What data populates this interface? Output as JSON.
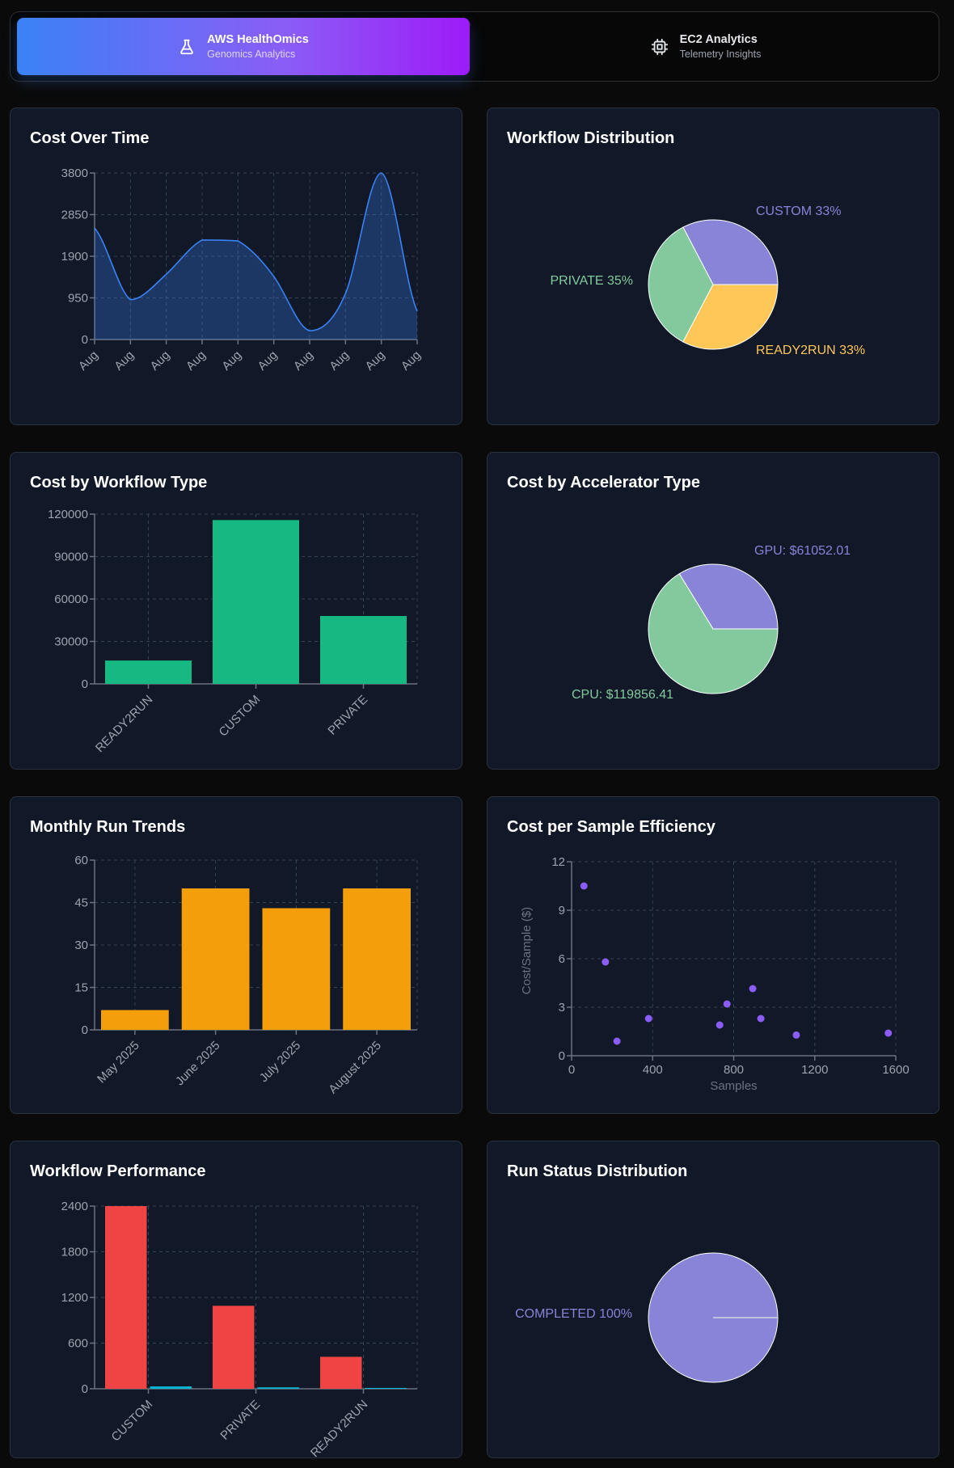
{
  "tabs": [
    {
      "title": "AWS HealthOmics",
      "subtitle": "Genomics Analytics",
      "icon": "flask-icon",
      "active": true
    },
    {
      "title": "EC2 Analytics",
      "subtitle": "Telemetry Insights",
      "icon": "chip-icon",
      "active": false
    }
  ],
  "colors": {
    "page_bg": "#0a0a0a",
    "card_bg": "#111827",
    "area": "#3b82f6",
    "green_bar": "#16b981",
    "orange_bar": "#f59e0b",
    "scatter": "#8b5cf6",
    "red_bar": "#ef4444",
    "cyan_bar": "#06b6d4",
    "pie_purple": "#8884d8",
    "pie_green": "#82ca9d",
    "pie_yellow": "#ffc658"
  },
  "chart_data": [
    {
      "id": "cost-over-time",
      "type": "area",
      "title": "Cost Over Time",
      "categories": [
        "Aug",
        "Aug",
        "Aug",
        "Aug",
        "Aug",
        "Aug",
        "Aug",
        "Aug",
        "Aug",
        "Aug"
      ],
      "values": [
        2540,
        910,
        1490,
        2270,
        2250,
        1440,
        200,
        1050,
        3800,
        650
      ],
      "yticks": [
        0,
        950,
        1900,
        2850,
        3800
      ],
      "ylim": [
        0,
        3800
      ],
      "grid": true
    },
    {
      "id": "workflow-distribution",
      "type": "pie",
      "title": "Workflow Distribution",
      "slices": [
        {
          "label": "CUSTOM",
          "value": 33,
          "display": "CUSTOM 33%",
          "color": "#8884d8"
        },
        {
          "label": "PRIVATE",
          "value": 35,
          "display": "PRIVATE 35%",
          "color": "#82ca9d"
        },
        {
          "label": "READY2RUN",
          "value": 33,
          "display": "READY2RUN 33%",
          "color": "#ffc658"
        }
      ]
    },
    {
      "id": "cost-by-workflow-type",
      "type": "bar",
      "title": "Cost by Workflow Type",
      "categories": [
        "READY2RUN",
        "CUSTOM",
        "PRIVATE"
      ],
      "values": [
        16500,
        115800,
        48000
      ],
      "yticks": [
        0,
        30000,
        60000,
        90000,
        120000
      ],
      "ylim": [
        0,
        120000
      ],
      "grid": true
    },
    {
      "id": "cost-by-accelerator-type",
      "type": "pie",
      "title": "Cost by Accelerator Type",
      "slices": [
        {
          "label": "GPU",
          "value": 61052.01,
          "display": "GPU: $61052.01",
          "color": "#8884d8"
        },
        {
          "label": "CPU",
          "value": 119856.41,
          "display": "CPU: $119856.41",
          "color": "#82ca9d"
        }
      ]
    },
    {
      "id": "monthly-run-trends",
      "type": "bar",
      "title": "Monthly Run Trends",
      "categories": [
        "May 2025",
        "June 2025",
        "July 2025",
        "August 2025"
      ],
      "values": [
        7,
        50,
        43,
        50
      ],
      "yticks": [
        0,
        15,
        30,
        45,
        60
      ],
      "ylim": [
        0,
        60
      ],
      "grid": true
    },
    {
      "id": "cost-per-sample-efficiency",
      "type": "scatter",
      "title": "Cost per Sample Efficiency",
      "xlabel": "Samples",
      "ylabel": "Cost/Sample ($)",
      "xticks": [
        0,
        400,
        800,
        1200,
        1600
      ],
      "yticks": [
        0,
        3,
        6,
        9,
        12
      ],
      "xlim": [
        0,
        1600
      ],
      "ylim": [
        0,
        12
      ],
      "points": [
        {
          "x": 61,
          "y": 10.5
        },
        {
          "x": 167,
          "y": 5.8
        },
        {
          "x": 224,
          "y": 0.9
        },
        {
          "x": 380,
          "y": 2.3
        },
        {
          "x": 731,
          "y": 1.9
        },
        {
          "x": 767,
          "y": 3.2
        },
        {
          "x": 894,
          "y": 4.15
        },
        {
          "x": 934,
          "y": 2.3
        },
        {
          "x": 1109,
          "y": 1.28
        },
        {
          "x": 1563,
          "y": 1.4
        }
      ],
      "grid": true
    },
    {
      "id": "workflow-performance",
      "type": "bar",
      "title": "Workflow Performance",
      "categories": [
        "CUSTOM",
        "PRIVATE",
        "READY2RUN"
      ],
      "series": [
        {
          "name": "series-1",
          "values": [
            2400,
            1090,
            420
          ],
          "color": "#ef4444"
        },
        {
          "name": "series-2",
          "values": [
            31,
            19,
            11
          ],
          "color": "#06b6d4"
        }
      ],
      "yticks": [
        0,
        600,
        1200,
        1800,
        2400
      ],
      "ylim": [
        0,
        2400
      ],
      "grid": true
    },
    {
      "id": "run-status-distribution",
      "type": "pie",
      "title": "Run Status Distribution",
      "slices": [
        {
          "label": "COMPLETED",
          "value": 100,
          "display": "COMPLETED 100%",
          "color": "#8884d8"
        }
      ]
    }
  ]
}
